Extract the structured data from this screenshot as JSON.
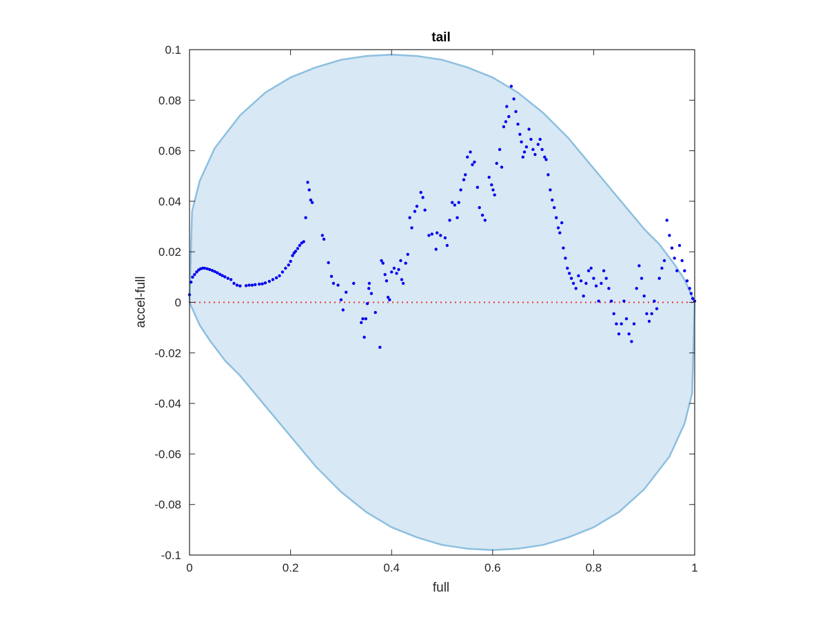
{
  "chart_data": {
    "type": "scatter",
    "title": "tail",
    "xlabel": "full",
    "ylabel": "accel-full",
    "xlim": [
      0,
      1
    ],
    "ylim": [
      -0.1,
      0.1
    ],
    "x_ticks": [
      0,
      0.2,
      0.4,
      0.6,
      0.8,
      1
    ],
    "x_tick_labels": [
      "0",
      "0.2",
      "0.4",
      "0.6",
      "0.8",
      "1"
    ],
    "y_ticks": [
      -0.1,
      -0.08,
      -0.06,
      -0.04,
      -0.02,
      0,
      0.02,
      0.04,
      0.06,
      0.08,
      0.1
    ],
    "y_tick_labels": [
      "-0.1",
      "-0.08",
      "-0.06",
      "-0.04",
      "-0.02",
      "0",
      "0.02",
      "0.04",
      "0.06",
      "0.08",
      "0.1"
    ],
    "grid": false,
    "colors": {
      "points": "#0000ee",
      "region_fill": "#d8e8f4",
      "region_edge": "#8cbfe0",
      "zero_line": "#e53333",
      "axes": "#262626"
    },
    "region_boundary": {
      "upper": [
        [
          0,
          0.0
        ],
        [
          0.005,
          0.036
        ],
        [
          0.02,
          0.048
        ],
        [
          0.05,
          0.061
        ],
        [
          0.1,
          0.074
        ],
        [
          0.15,
          0.083
        ],
        [
          0.2,
          0.089
        ],
        [
          0.25,
          0.093
        ],
        [
          0.3,
          0.096
        ],
        [
          0.35,
          0.0975
        ],
        [
          0.4,
          0.098
        ],
        [
          0.45,
          0.0975
        ],
        [
          0.5,
          0.096
        ],
        [
          0.55,
          0.093
        ],
        [
          0.6,
          0.089
        ],
        [
          0.65,
          0.083
        ],
        [
          0.7,
          0.075
        ],
        [
          0.75,
          0.065
        ],
        [
          0.8,
          0.053
        ],
        [
          0.85,
          0.041
        ],
        [
          0.9,
          0.029
        ],
        [
          0.93,
          0.023
        ],
        [
          0.96,
          0.015
        ],
        [
          0.98,
          0.009
        ],
        [
          1.0,
          0.0
        ]
      ],
      "lower": [
        [
          1.0,
          0.0
        ],
        [
          0.995,
          -0.036
        ],
        [
          0.98,
          -0.048
        ],
        [
          0.95,
          -0.061
        ],
        [
          0.9,
          -0.074
        ],
        [
          0.85,
          -0.083
        ],
        [
          0.8,
          -0.089
        ],
        [
          0.75,
          -0.093
        ],
        [
          0.7,
          -0.096
        ],
        [
          0.65,
          -0.0975
        ],
        [
          0.6,
          -0.098
        ],
        [
          0.55,
          -0.0975
        ],
        [
          0.5,
          -0.096
        ],
        [
          0.45,
          -0.093
        ],
        [
          0.4,
          -0.089
        ],
        [
          0.35,
          -0.083
        ],
        [
          0.3,
          -0.075
        ],
        [
          0.25,
          -0.065
        ],
        [
          0.2,
          -0.053
        ],
        [
          0.15,
          -0.041
        ],
        [
          0.1,
          -0.029
        ],
        [
          0.07,
          -0.023
        ],
        [
          0.04,
          -0.015
        ],
        [
          0.02,
          -0.009
        ],
        [
          0,
          0.0
        ]
      ]
    },
    "reference_line": {
      "y": 0,
      "style": "dotted"
    },
    "points": [
      [
        0.0,
        0.003
      ],
      [
        0.003,
        0.008
      ],
      [
        0.006,
        0.01
      ],
      [
        0.01,
        0.011
      ],
      [
        0.014,
        0.012
      ],
      [
        0.018,
        0.0128
      ],
      [
        0.022,
        0.0133
      ],
      [
        0.026,
        0.0135
      ],
      [
        0.03,
        0.0135
      ],
      [
        0.035,
        0.0133
      ],
      [
        0.04,
        0.013
      ],
      [
        0.045,
        0.0126
      ],
      [
        0.05,
        0.0122
      ],
      [
        0.055,
        0.0117
      ],
      [
        0.06,
        0.0111
      ],
      [
        0.065,
        0.0106
      ],
      [
        0.07,
        0.0101
      ],
      [
        0.076,
        0.0095
      ],
      [
        0.082,
        0.009
      ],
      [
        0.088,
        0.0075
      ],
      [
        0.094,
        0.0068
      ],
      [
        0.1,
        0.0065
      ],
      [
        0.112,
        0.0066
      ],
      [
        0.118,
        0.0068
      ],
      [
        0.124,
        0.0068
      ],
      [
        0.13,
        0.007
      ],
      [
        0.138,
        0.0072
      ],
      [
        0.144,
        0.0073
      ],
      [
        0.15,
        0.0077
      ],
      [
        0.158,
        0.0083
      ],
      [
        0.165,
        0.009
      ],
      [
        0.172,
        0.0097
      ],
      [
        0.178,
        0.0105
      ],
      [
        0.184,
        0.012
      ],
      [
        0.19,
        0.0135
      ],
      [
        0.196,
        0.0148
      ],
      [
        0.2,
        0.0162
      ],
      [
        0.204,
        0.0185
      ],
      [
        0.207,
        0.0195
      ],
      [
        0.21,
        0.0202
      ],
      [
        0.214,
        0.0213
      ],
      [
        0.218,
        0.0225
      ],
      [
        0.222,
        0.0235
      ],
      [
        0.226,
        0.024
      ],
      [
        0.23,
        0.0335
      ],
      [
        0.234,
        0.0475
      ],
      [
        0.237,
        0.0445
      ],
      [
        0.24,
        0.0405
      ],
      [
        0.243,
        0.0395
      ],
      [
        0.263,
        0.0265
      ],
      [
        0.266,
        0.025
      ],
      [
        0.275,
        0.0157
      ],
      [
        0.281,
        0.0103
      ],
      [
        0.285,
        0.0075
      ],
      [
        0.294,
        0.0068
      ],
      [
        0.3,
        0.001
      ],
      [
        0.304,
        -0.003
      ],
      [
        0.31,
        0.004
      ],
      [
        0.325,
        0.0075
      ],
      [
        0.34,
        -0.008
      ],
      [
        0.343,
        -0.0065
      ],
      [
        0.346,
        -0.0138
      ],
      [
        0.349,
        -0.0065
      ],
      [
        0.352,
        -0.0005
      ],
      [
        0.355,
        0.0055
      ],
      [
        0.356,
        0.0075
      ],
      [
        0.36,
        0.0035
      ],
      [
        0.368,
        -0.004
      ],
      [
        0.377,
        -0.0178
      ],
      [
        0.38,
        0.0165
      ],
      [
        0.383,
        0.0155
      ],
      [
        0.387,
        0.011
      ],
      [
        0.39,
        0.0085
      ],
      [
        0.393,
        0.002
      ],
      [
        0.396,
        0.001
      ],
      [
        0.4,
        0.012
      ],
      [
        0.405,
        0.0135
      ],
      [
        0.41,
        0.0115
      ],
      [
        0.414,
        0.013
      ],
      [
        0.418,
        0.0165
      ],
      [
        0.42,
        0.009
      ],
      [
        0.423,
        0.0075
      ],
      [
        0.428,
        0.0155
      ],
      [
        0.432,
        0.019
      ],
      [
        0.436,
        0.0335
      ],
      [
        0.44,
        0.0295
      ],
      [
        0.446,
        0.036
      ],
      [
        0.45,
        0.038
      ],
      [
        0.458,
        0.0435
      ],
      [
        0.462,
        0.0415
      ],
      [
        0.466,
        0.0365
      ],
      [
        0.474,
        0.0265
      ],
      [
        0.48,
        0.027
      ],
      [
        0.488,
        0.021
      ],
      [
        0.49,
        0.0275
      ],
      [
        0.497,
        0.0265
      ],
      [
        0.506,
        0.0255
      ],
      [
        0.51,
        0.0225
      ],
      [
        0.515,
        0.0325
      ],
      [
        0.52,
        0.0395
      ],
      [
        0.525,
        0.0385
      ],
      [
        0.53,
        0.0335
      ],
      [
        0.533,
        0.0395
      ],
      [
        0.537,
        0.0445
      ],
      [
        0.543,
        0.0485
      ],
      [
        0.546,
        0.0505
      ],
      [
        0.55,
        0.0575
      ],
      [
        0.556,
        0.0595
      ],
      [
        0.56,
        0.0545
      ],
      [
        0.564,
        0.0555
      ],
      [
        0.57,
        0.0455
      ],
      [
        0.574,
        0.0375
      ],
      [
        0.58,
        0.0345
      ],
      [
        0.585,
        0.0325
      ],
      [
        0.593,
        0.0495
      ],
      [
        0.598,
        0.0465
      ],
      [
        0.601,
        0.0445
      ],
      [
        0.604,
        0.0425
      ],
      [
        0.608,
        0.055
      ],
      [
        0.614,
        0.0605
      ],
      [
        0.618,
        0.0535
      ],
      [
        0.622,
        0.0695
      ],
      [
        0.626,
        0.0715
      ],
      [
        0.628,
        0.0775
      ],
      [
        0.632,
        0.0735
      ],
      [
        0.637,
        0.0855
      ],
      [
        0.642,
        0.0805
      ],
      [
        0.646,
        0.0755
      ],
      [
        0.65,
        0.0705
      ],
      [
        0.654,
        0.0665
      ],
      [
        0.657,
        0.0635
      ],
      [
        0.66,
        0.0575
      ],
      [
        0.663,
        0.0595
      ],
      [
        0.667,
        0.0615
      ],
      [
        0.672,
        0.0685
      ],
      [
        0.676,
        0.0645
      ],
      [
        0.68,
        0.0605
      ],
      [
        0.684,
        0.0585
      ],
      [
        0.69,
        0.0625
      ],
      [
        0.694,
        0.0645
      ],
      [
        0.698,
        0.0605
      ],
      [
        0.703,
        0.0575
      ],
      [
        0.706,
        0.0565
      ],
      [
        0.71,
        0.0505
      ],
      [
        0.714,
        0.0445
      ],
      [
        0.718,
        0.0405
      ],
      [
        0.722,
        0.0375
      ],
      [
        0.726,
        0.0335
      ],
      [
        0.73,
        0.0295
      ],
      [
        0.733,
        0.0275
      ],
      [
        0.737,
        0.0315
      ],
      [
        0.74,
        0.0215
      ],
      [
        0.744,
        0.0175
      ],
      [
        0.748,
        0.0135
      ],
      [
        0.752,
        0.0115
      ],
      [
        0.756,
        0.0095
      ],
      [
        0.76,
        0.0075
      ],
      [
        0.765,
        0.0055
      ],
      [
        0.77,
        0.0105
      ],
      [
        0.775,
        0.0085
      ],
      [
        0.78,
        0.0025
      ],
      [
        0.785,
        0.0075
      ],
      [
        0.79,
        0.0125
      ],
      [
        0.795,
        0.0135
      ],
      [
        0.8,
        0.0095
      ],
      [
        0.805,
        0.0065
      ],
      [
        0.81,
        0.0005
      ],
      [
        0.815,
        0.0075
      ],
      [
        0.82,
        0.0125
      ],
      [
        0.825,
        0.0095
      ],
      [
        0.83,
        0.0055
      ],
      [
        0.835,
        0.0005
      ],
      [
        0.84,
        -0.0045
      ],
      [
        0.845,
        -0.0085
      ],
      [
        0.85,
        -0.0125
      ],
      [
        0.855,
        -0.0085
      ],
      [
        0.86,
        0.0005
      ],
      [
        0.865,
        -0.0065
      ],
      [
        0.87,
        -0.0125
      ],
      [
        0.875,
        -0.0155
      ],
      [
        0.88,
        -0.0085
      ],
      [
        0.885,
        0.0055
      ],
      [
        0.89,
        0.0145
      ],
      [
        0.895,
        0.0095
      ],
      [
        0.9,
        0.0025
      ],
      [
        0.905,
        -0.0045
      ],
      [
        0.91,
        -0.0075
      ],
      [
        0.915,
        -0.0045
      ],
      [
        0.92,
        0.0005
      ],
      [
        0.925,
        -0.0025
      ],
      [
        0.93,
        0.0095
      ],
      [
        0.935,
        0.0135
      ],
      [
        0.94,
        0.0165
      ],
      [
        0.945,
        0.0325
      ],
      [
        0.95,
        0.0265
      ],
      [
        0.955,
        0.0215
      ],
      [
        0.96,
        0.0175
      ],
      [
        0.965,
        0.0125
      ],
      [
        0.97,
        0.0225
      ],
      [
        0.975,
        0.0165
      ],
      [
        0.98,
        0.0125
      ],
      [
        0.985,
        0.0085
      ],
      [
        0.99,
        0.0055
      ],
      [
        0.993,
        0.0035
      ],
      [
        0.996,
        0.0015
      ],
      [
        1.0,
        0.0005
      ]
    ]
  }
}
